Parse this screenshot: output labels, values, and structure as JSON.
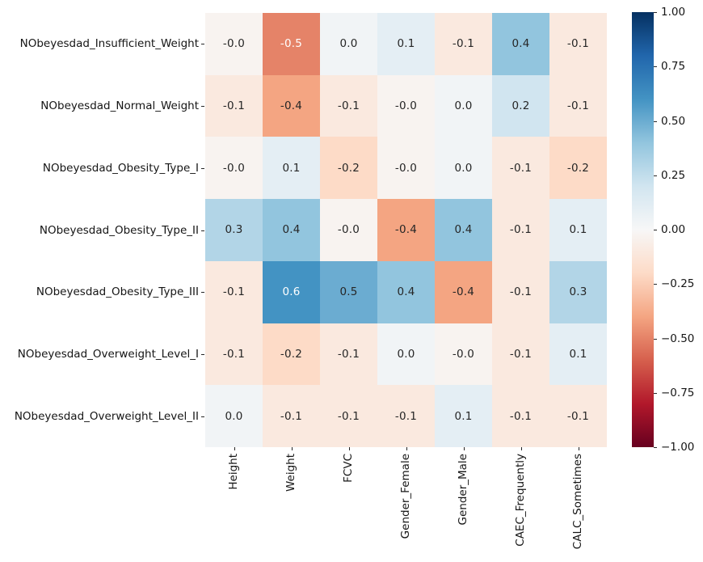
{
  "figure": {
    "background": "#ffffff",
    "tick_color": "#262626",
    "label_color": "#151515"
  },
  "chart_data": {
    "type": "heatmap",
    "title": "",
    "xlabel": "",
    "ylabel": "",
    "columns": [
      "Height",
      "Weight",
      "FCVC",
      "Gender_Female",
      "Gender_Male",
      "CAEC_Frequently",
      "CALC_Sometimes"
    ],
    "rows": [
      "NObeyesdad_Insufficient_Weight",
      "NObeyesdad_Normal_Weight",
      "NObeyesdad_Obesity_Type_I",
      "NObeyesdad_Obesity_Type_II",
      "NObeyesdad_Obesity_Type_III",
      "NObeyesdad_Overweight_Level_I",
      "NObeyesdad_Overweight_Level_II"
    ],
    "values": [
      [
        "-0.0",
        "-0.5",
        "0.0",
        "0.1",
        "-0.1",
        "0.4",
        "-0.1"
      ],
      [
        "-0.1",
        "-0.4",
        "-0.1",
        "-0.0",
        "0.0",
        "0.2",
        "-0.1"
      ],
      [
        "-0.0",
        "0.1",
        "-0.2",
        "-0.0",
        "0.0",
        "-0.1",
        "-0.2"
      ],
      [
        "0.3",
        "0.4",
        "-0.0",
        "-0.4",
        "0.4",
        "-0.1",
        "0.1"
      ],
      [
        "-0.1",
        "0.6",
        "0.5",
        "0.4",
        "-0.4",
        "-0.1",
        "0.3"
      ],
      [
        "-0.1",
        "-0.2",
        "-0.1",
        "0.0",
        "-0.0",
        "-0.1",
        "0.1"
      ],
      [
        "0.0",
        "-0.1",
        "-0.1",
        "-0.1",
        "0.1",
        "-0.1",
        "-0.1"
      ]
    ],
    "vmin": -1,
    "vmax": 1,
    "colormap": "RdBu",
    "colormap_anchors": [
      "#67001f",
      "#b2182b",
      "#d6604d",
      "#f4a582",
      "#fddbc7",
      "#f7f7f7",
      "#d1e5f0",
      "#92c5de",
      "#4393c3",
      "#2166ac",
      "#053061"
    ],
    "colorbar_ticks": [
      "1.00",
      "0.75",
      "0.50",
      "0.25",
      "0.00",
      "−0.25",
      "−0.50",
      "−0.75",
      "−1.00"
    ],
    "annotation_colors": {
      "dark": "#262626",
      "light": "#ffffff"
    },
    "legend_position": "right",
    "grid": false
  }
}
